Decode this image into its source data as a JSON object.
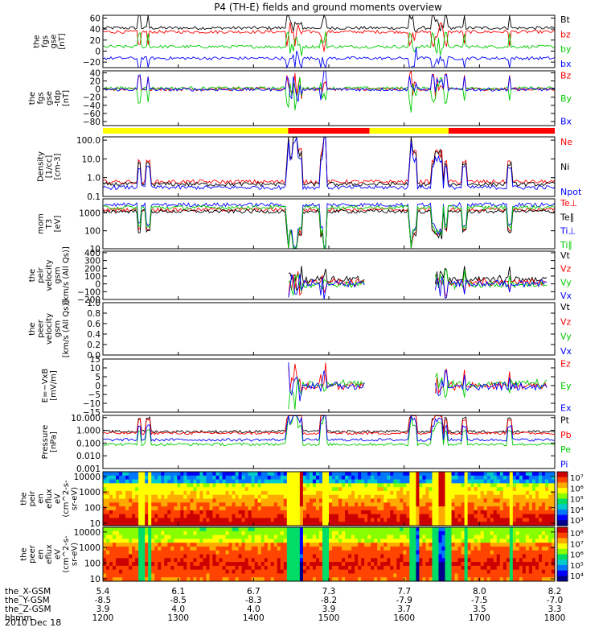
{
  "title": "P4 (TH-E) fields and ground moments overview",
  "chart_data": {
    "type": "line",
    "date": "2010 Dec 18",
    "x_range": [
      "12:00",
      "18:00"
    ],
    "time_ticks": [
      "1200",
      "1300",
      "1400",
      "1500",
      "1600",
      "1700",
      "1800"
    ],
    "ephemeris": [
      {
        "label": "the_X-GSM",
        "values": [
          "5.4",
          "6.1",
          "6.7",
          "7.3",
          "7.7",
          "8.0",
          "8.2"
        ]
      },
      {
        "label": "the_Y-GSM",
        "values": [
          "-8.5",
          "-8.5",
          "-8.3",
          "-8.2",
          "-7.9",
          "-7.5",
          "-7.0"
        ]
      },
      {
        "label": "the_Z-GSM",
        "values": [
          "3.9",
          "4.0",
          "4.0",
          "3.9",
          "3.7",
          "3.5",
          "3.3"
        ]
      },
      {
        "label": "hhmm",
        "values": [
          "1200",
          "1300",
          "1400",
          "1500",
          "1600",
          "1700",
          "1800"
        ]
      }
    ],
    "panels": [
      {
        "id": "fgs_gse",
        "ylabel": [
          "the",
          "fgs",
          "gse",
          "[nT]"
        ],
        "scale": "linear",
        "ylim": [
          -30,
          65
        ],
        "ticks": [
          "60",
          "40",
          "20",
          "0",
          "−20"
        ],
        "series": [
          {
            "name": "Bt",
            "color": "#000000",
            "base": 42
          },
          {
            "name": "bz",
            "color": "#ff0000",
            "base": 35
          },
          {
            "name": "by",
            "color": "#00cc00",
            "base": 8
          },
          {
            "name": "bx",
            "color": "#0000ff",
            "base": -13
          }
        ]
      },
      {
        "id": "fgs_gse_tdp",
        "ylabel": [
          "the",
          "fgs",
          "gse",
          "-tdp",
          "[nT]"
        ],
        "scale": "linear",
        "ylim": [
          -90,
          45
        ],
        "ticks": [
          "40",
          "20",
          "0",
          "−20",
          "−40",
          "−60",
          "−80"
        ],
        "series": [
          {
            "name": "Bz",
            "color": "#ff0000",
            "base": 0
          },
          {
            "name": "By",
            "color": "#00cc00",
            "base": 2
          },
          {
            "name": "Bx",
            "color": "#0000ff",
            "base": -1
          }
        ]
      },
      {
        "id": "density",
        "ylabel": [
          "Density",
          "[1/cc]",
          "[cm-3]"
        ],
        "scale": "log",
        "ylim": [
          0.1,
          150
        ],
        "ticks": [
          "100.0",
          "10.0",
          "1.0",
          "0.1"
        ],
        "series": [
          {
            "name": "Ne",
            "color": "#ff0000",
            "base": 0.6
          },
          {
            "name": "Ni",
            "color": "#000000",
            "base": 0.45
          },
          {
            "name": "Npot",
            "color": "#0000ff",
            "base": 0.3
          }
        ]
      },
      {
        "id": "temperature",
        "ylabel": [
          "mom",
          "T3",
          "[eV]"
        ],
        "scale": "log",
        "ylim": [
          10,
          6000
        ],
        "ticks": [
          "1000",
          "100",
          "10"
        ],
        "series": [
          {
            "name": "Te⊥",
            "color": "#ff0000",
            "base": 1500
          },
          {
            "name": "Te∥",
            "color": "#000000",
            "base": 1200
          },
          {
            "name": "Ti⊥",
            "color": "#0000ff",
            "base": 2800
          },
          {
            "name": "Ti∥",
            "color": "#00cc00",
            "base": 2000
          }
        ]
      },
      {
        "id": "peir_velocity",
        "ylabel": [
          "the",
          "peir",
          "velocity",
          "gsm",
          "[km/s (All Qs)]"
        ],
        "scale": "linear",
        "ylim": [
          -200,
          420
        ],
        "ticks": [
          "400",
          "300",
          "200",
          "100",
          "0",
          "−100",
          "−200"
        ],
        "series": [
          {
            "name": "Vt",
            "color": "#000000",
            "base": 60
          },
          {
            "name": "Vz",
            "color": "#ff0000",
            "base": 20
          },
          {
            "name": "Vy",
            "color": "#00cc00",
            "base": -10
          },
          {
            "name": "Vx",
            "color": "#0000ff",
            "base": 5
          }
        ]
      },
      {
        "id": "peer_velocity",
        "ylabel": [
          "the",
          "peer",
          "velocity",
          "gsm",
          "[km/s (All Qs)]"
        ],
        "scale": "linear",
        "ylim": [
          0,
          1.0
        ],
        "ticks": [
          "1.0",
          "0.8",
          "0.6",
          "0.4",
          "0.2",
          "0.0"
        ],
        "series": [
          {
            "name": "Vt",
            "color": "#000000",
            "base": null
          },
          {
            "name": "Vz",
            "color": "#ff0000",
            "base": null
          },
          {
            "name": "Vy",
            "color": "#00cc00",
            "base": null
          },
          {
            "name": "Vx",
            "color": "#0000ff",
            "base": null
          }
        ]
      },
      {
        "id": "efield",
        "ylabel": [
          "E=−VxB",
          "[mV/m]"
        ],
        "scale": "linear",
        "ylim": [
          -15,
          15
        ],
        "ticks": [
          "15",
          "10",
          "5",
          "0",
          "−5",
          "−10",
          "−15"
        ],
        "series": [
          {
            "name": "Ez",
            "color": "#ff0000",
            "base": 0
          },
          {
            "name": "Ey",
            "color": "#00cc00",
            "base": 1
          },
          {
            "name": "Ex",
            "color": "#0000ff",
            "base": -0.5
          }
        ]
      },
      {
        "id": "pressure",
        "ylabel": [
          "Pressure",
          "[nPa]"
        ],
        "scale": "log",
        "ylim": [
          0.001,
          15
        ],
        "ticks": [
          "10.000",
          "1.000",
          "0.100",
          "0.010",
          "0.001"
        ],
        "series": [
          {
            "name": "Pt",
            "color": "#000000",
            "base": 0.8
          },
          {
            "name": "Pb",
            "color": "#ff0000",
            "base": 0.6
          },
          {
            "name": "Pe",
            "color": "#00cc00",
            "base": 0.08
          },
          {
            "name": "Pi",
            "color": "#0000ff",
            "base": 0.18
          }
        ]
      },
      {
        "id": "peir_spec",
        "type": "heatmap",
        "ylabel": [
          "the",
          "peir",
          "en",
          "eflux",
          "eV",
          "(cm^2-s-",
          "sr-eV)"
        ],
        "scale": "log",
        "ylim": [
          7,
          20000
        ],
        "ticks": [
          "10000",
          "1000",
          "100",
          "10"
        ],
        "colorbar_ticks": [
          "10⁷",
          "10⁶",
          "10⁵",
          "10⁴",
          "10³"
        ]
      },
      {
        "id": "peer_spec",
        "type": "heatmap",
        "ylabel": [
          "the",
          "peer",
          "en",
          "eflux",
          "eV",
          "(cm^2-s-",
          "sr-eV)"
        ],
        "scale": "log",
        "ylim": [
          7,
          20000
        ],
        "ticks": [
          "10000",
          "1000",
          "100",
          "10"
        ],
        "colorbar_ticks": [
          "10⁸",
          "10⁷",
          "10⁶",
          "10⁵",
          "10⁴"
        ]
      }
    ],
    "mode_bar": {
      "colors": {
        "slow": "#ffff00",
        "fast": "#ff0000"
      },
      "segments": [
        {
          "from": 0.0,
          "to": 0.41,
          "mode": "slow"
        },
        {
          "from": 0.41,
          "to": 0.59,
          "mode": "fast"
        },
        {
          "from": 0.59,
          "to": 0.765,
          "mode": "slow"
        },
        {
          "from": 0.765,
          "to": 1.0,
          "mode": "fast"
        }
      ]
    }
  }
}
